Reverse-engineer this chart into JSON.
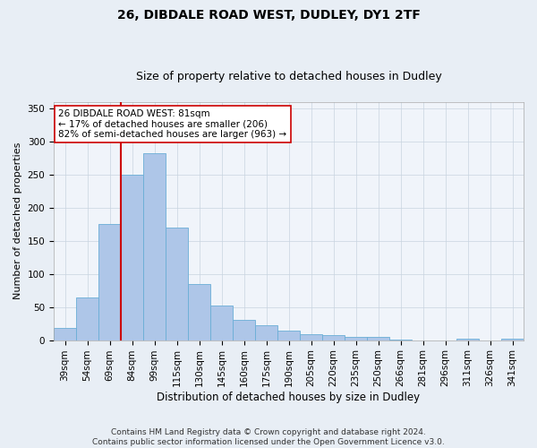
{
  "title1": "26, DIBDALE ROAD WEST, DUDLEY, DY1 2TF",
  "title2": "Size of property relative to detached houses in Dudley",
  "xlabel": "Distribution of detached houses by size in Dudley",
  "ylabel": "Number of detached properties",
  "categories": [
    "39sqm",
    "54sqm",
    "69sqm",
    "84sqm",
    "99sqm",
    "115sqm",
    "130sqm",
    "145sqm",
    "160sqm",
    "175sqm",
    "190sqm",
    "205sqm",
    "220sqm",
    "235sqm",
    "250sqm",
    "266sqm",
    "281sqm",
    "296sqm",
    "311sqm",
    "326sqm",
    "341sqm"
  ],
  "values": [
    18,
    65,
    175,
    250,
    283,
    170,
    85,
    52,
    30,
    22,
    14,
    9,
    7,
    5,
    5,
    1,
    0,
    0,
    2,
    0,
    2
  ],
  "bar_color": "#aec6e8",
  "bar_edge_color": "#6aaed6",
  "vline_x": 2.5,
  "vline_color": "#cc0000",
  "annotation_text": "26 DIBDALE ROAD WEST: 81sqm\n← 17% of detached houses are smaller (206)\n82% of semi-detached houses are larger (963) →",
  "annotation_box_color": "#ffffff",
  "annotation_box_edge": "#cc0000",
  "ylim": [
    0,
    360
  ],
  "yticks": [
    0,
    50,
    100,
    150,
    200,
    250,
    300,
    350
  ],
  "bg_color": "#e8eef5",
  "plot_bg_color": "#f0f4fa",
  "footer1": "Contains HM Land Registry data © Crown copyright and database right 2024.",
  "footer2": "Contains public sector information licensed under the Open Government Licence v3.0.",
  "title1_fontsize": 10,
  "title2_fontsize": 9,
  "xlabel_fontsize": 8.5,
  "ylabel_fontsize": 8,
  "tick_fontsize": 7.5,
  "annotation_fontsize": 7.5,
  "footer_fontsize": 6.5
}
